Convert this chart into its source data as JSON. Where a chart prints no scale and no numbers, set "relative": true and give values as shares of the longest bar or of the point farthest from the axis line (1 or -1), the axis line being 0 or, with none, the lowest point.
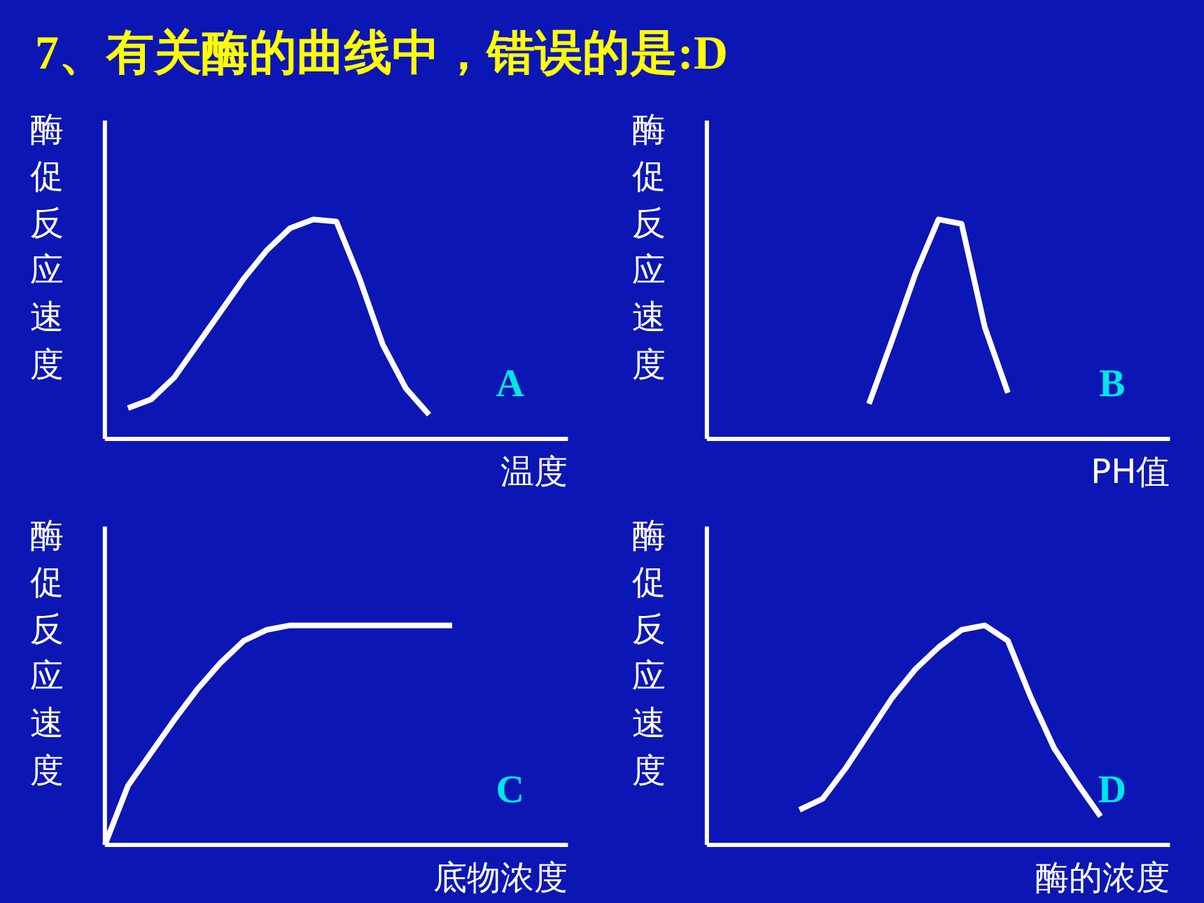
{
  "chart_data": [
    {
      "type": "line",
      "title": "7、有关酶的曲线中，错误的是:D",
      "relative": true,
      "ylabel": "酶促反应速度",
      "xlabel": "温度",
      "annotations": [
        "A"
      ],
      "color": "#ffffff",
      "categories": [
        null,
        null,
        null,
        null,
        null,
        null,
        null,
        null,
        null,
        null,
        null,
        null,
        null,
        null,
        null,
        null,
        null,
        null,
        null,
        null
      ],
      "values": [
        null,
        0.14,
        0.18,
        0.28,
        0.43,
        0.58,
        0.73,
        0.86,
        0.96,
        1.0,
        0.99,
        0.73,
        0.43,
        0.23,
        0.11,
        null,
        null,
        null,
        null,
        null
      ]
    },
    {
      "type": "line",
      "relative": true,
      "ylabel": "酶促反应速度",
      "xlabel": "PH值",
      "annotations": [
        "B"
      ],
      "color": "#ffffff",
      "categories": [
        null,
        null,
        null,
        null,
        null,
        null,
        null,
        null,
        null,
        null,
        null,
        null,
        null,
        null,
        null,
        null,
        null,
        null,
        null,
        null
      ],
      "values": [
        null,
        null,
        null,
        null,
        null,
        null,
        null,
        0.16,
        0.45,
        0.75,
        1.0,
        0.98,
        0.51,
        0.21,
        null,
        null,
        null,
        null,
        null,
        null
      ]
    },
    {
      "type": "line",
      "relative": true,
      "ylabel": "酶促反应速度",
      "xlabel": "底物浓度",
      "annotations": [
        "C"
      ],
      "color": "#ffffff",
      "categories": [
        null,
        null,
        null,
        null,
        null,
        null,
        null,
        null,
        null,
        null,
        null,
        null,
        null,
        null,
        null,
        null,
        null,
        null,
        null,
        null
      ],
      "values": [
        0.0,
        0.27,
        0.42,
        0.57,
        0.71,
        0.83,
        0.93,
        0.98,
        1.0,
        1.0,
        1.0,
        1.0,
        1.0,
        1.0,
        1.0,
        1.0,
        null,
        null,
        null,
        null
      ]
    },
    {
      "type": "line",
      "relative": true,
      "ylabel": "酶促反应速度",
      "xlabel": "酶的浓度",
      "annotations": [
        "D"
      ],
      "color": "#ffffff",
      "categories": [
        null,
        null,
        null,
        null,
        null,
        null,
        null,
        null,
        null,
        null,
        null,
        null,
        null,
        null,
        null,
        null,
        null,
        null,
        null,
        null
      ],
      "values": [
        null,
        null,
        null,
        null,
        0.16,
        0.21,
        0.35,
        0.51,
        0.67,
        0.8,
        0.9,
        0.98,
        1.0,
        0.93,
        0.67,
        0.44,
        0.28,
        0.13,
        null,
        null
      ]
    }
  ]
}
